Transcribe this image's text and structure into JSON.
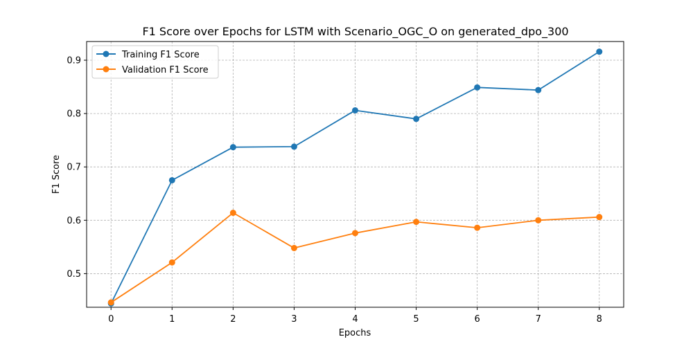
{
  "chart_data": {
    "type": "line",
    "title": "F1 Score over Epochs for LSTM with Scenario_OGC_O on generated_dpo_300",
    "xlabel": "Epochs",
    "ylabel": "F1 Score",
    "x": [
      0,
      1,
      2,
      3,
      4,
      5,
      6,
      7,
      8
    ],
    "xlim": [
      -0.4,
      8.4
    ],
    "ylim": [
      0.437,
      0.935
    ],
    "xticks": [
      0,
      1,
      2,
      3,
      4,
      5,
      6,
      7,
      8
    ],
    "yticks": [
      0.5,
      0.6,
      0.7,
      0.8,
      0.9
    ],
    "grid": true,
    "legend_position": "upper-left",
    "series": [
      {
        "name": "Training F1 Score",
        "color": "#1f77b4",
        "marker": "circle",
        "values": [
          0.444,
          0.675,
          0.737,
          0.738,
          0.806,
          0.79,
          0.849,
          0.844,
          0.916
        ]
      },
      {
        "name": "Validation F1 Score",
        "color": "#ff7f0e",
        "marker": "circle",
        "values": [
          0.446,
          0.521,
          0.614,
          0.548,
          0.576,
          0.597,
          0.586,
          0.6,
          0.606
        ]
      }
    ]
  }
}
